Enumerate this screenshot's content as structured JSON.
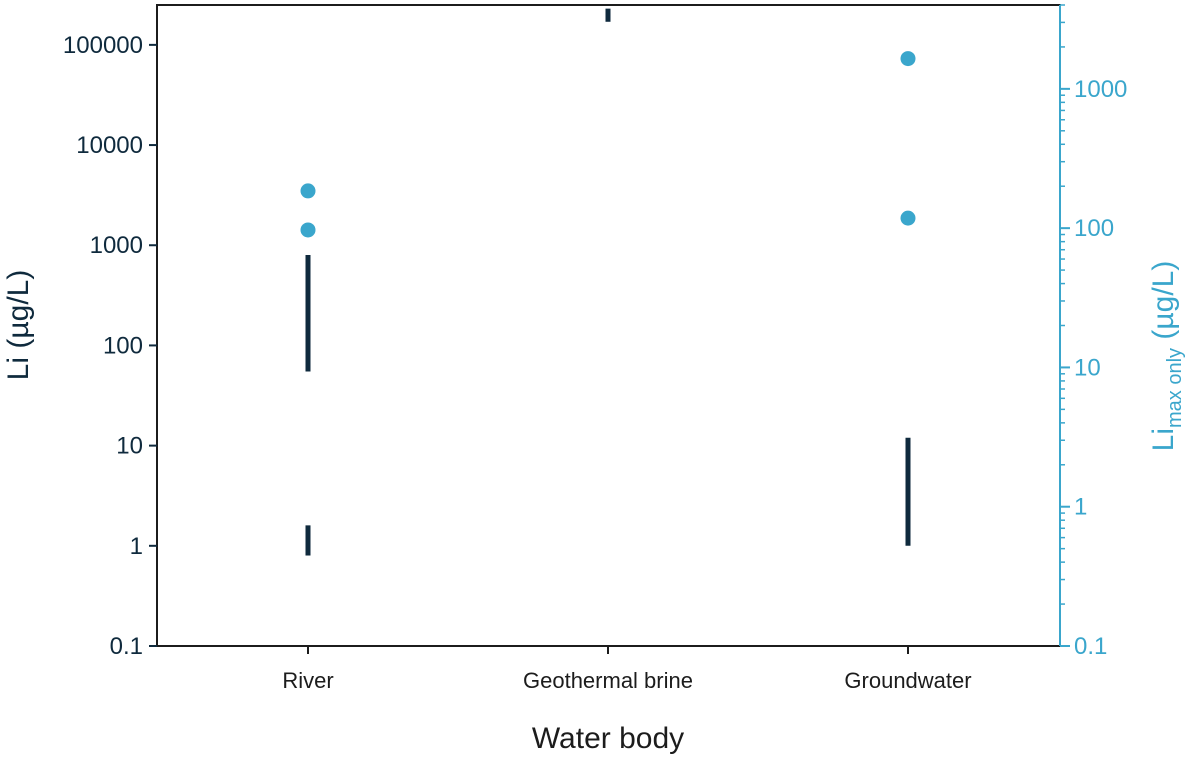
{
  "colors": {
    "left_axis": "#0f2a3d",
    "right_axis": "#3aa6cc",
    "range_bar": "#0f2a3d",
    "point": "#3aa6cc"
  },
  "chart_data": {
    "type": "scatter",
    "categories": [
      "River",
      "Geothermal brine",
      "Groundwater"
    ],
    "xlabel": "Water body",
    "ylabel": "Li (µg/L)",
    "y2label_main": "Li",
    "y2label_sub": "max only",
    "y2label_unit": " (µg/L)",
    "y_scale": "log",
    "ylim": [
      0.1,
      250000
    ],
    "y_ticks": [
      "0.1",
      "1",
      "10",
      "100",
      "1000",
      "10000",
      "100000"
    ],
    "y_tick_values": [
      0.1,
      1,
      10,
      100,
      1000,
      10000,
      100000
    ],
    "y2_scale": "log",
    "y2lim": [
      0.1,
      4000
    ],
    "y2_ticks": [
      "0.1",
      "1",
      "10",
      "100",
      "1000"
    ],
    "y2_tick_values": [
      0.1,
      1,
      10,
      100,
      1000
    ],
    "range_series": [
      {
        "category": "River",
        "low": 55,
        "high": 800
      },
      {
        "category": "River",
        "low": 0.8,
        "high": 1.6
      },
      {
        "category": "Geothermal brine",
        "low": 170000,
        "high": 230000
      },
      {
        "category": "Groundwater",
        "low": 1,
        "high": 12
      }
    ],
    "max_only_series": [
      {
        "category": "River",
        "value": 185
      },
      {
        "category": "River",
        "value": 97
      },
      {
        "category": "Groundwater",
        "value": 1650
      },
      {
        "category": "Groundwater",
        "value": 118
      }
    ],
    "grid": false,
    "legend": "none"
  }
}
